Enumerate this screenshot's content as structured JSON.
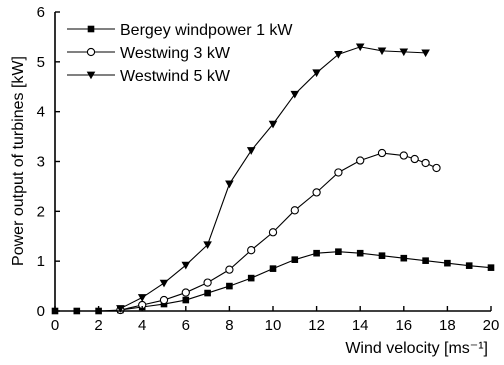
{
  "chart_data": {
    "type": "line",
    "xlabel": "Wind velocity [ms⁻¹]",
    "ylabel": "Power output of turbines [kW]",
    "xlim": [
      0,
      20
    ],
    "ylim": [
      0,
      6
    ],
    "xticks": [
      "0",
      "2",
      "4",
      "6",
      "8",
      "10",
      "12",
      "14",
      "16",
      "18",
      "20"
    ],
    "yticks": [
      "0",
      "1",
      "2",
      "3",
      "4",
      "5",
      "6"
    ],
    "legend_position": "top-left",
    "grid": false,
    "series": [
      {
        "name": "Bergey windpower 1 kW",
        "marker": "square-filled",
        "x": [
          0,
          1,
          2,
          3,
          4,
          5,
          6,
          7,
          8,
          9,
          10,
          11,
          12,
          13,
          14,
          15,
          16,
          17,
          18,
          19,
          20
        ],
        "y": [
          0,
          0,
          0,
          0.02,
          0.08,
          0.14,
          0.22,
          0.36,
          0.5,
          0.66,
          0.85,
          1.03,
          1.16,
          1.19,
          1.16,
          1.11,
          1.06,
          1.01,
          0.96,
          0.91,
          0.87
        ]
      },
      {
        "name": "Westwing 3 kW",
        "marker": "circle-open",
        "x": [
          3,
          4,
          5,
          6,
          7,
          8,
          9,
          10,
          11,
          12,
          13,
          14,
          15,
          16,
          16.5,
          17,
          17.5
        ],
        "y": [
          0.02,
          0.12,
          0.22,
          0.37,
          0.57,
          0.83,
          1.22,
          1.58,
          2.02,
          2.38,
          2.78,
          3.02,
          3.17,
          3.12,
          3.05,
          2.97,
          2.87
        ]
      },
      {
        "name": "Westwind 5 kW",
        "marker": "triangle-down-filled",
        "x": [
          3,
          4,
          5,
          6,
          7,
          8,
          9,
          10,
          11,
          12,
          13,
          14,
          15,
          16,
          17
        ],
        "y": [
          0.05,
          0.27,
          0.56,
          0.92,
          1.33,
          2.55,
          3.22,
          3.75,
          4.35,
          4.78,
          5.15,
          5.3,
          5.22,
          5.2,
          5.18
        ]
      }
    ]
  }
}
